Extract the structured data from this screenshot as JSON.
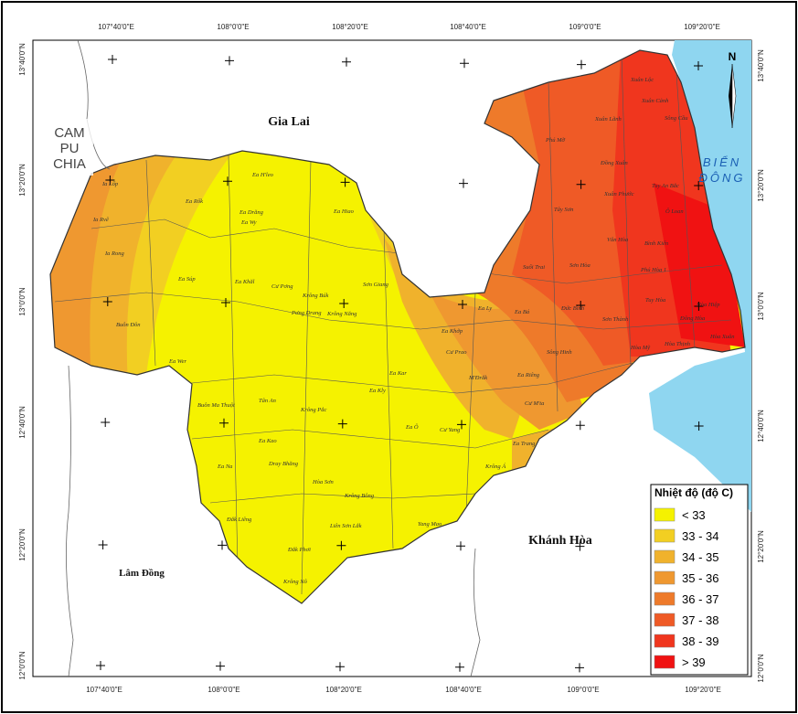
{
  "graticule": {
    "lon_labels": [
      "107°40'0\"E",
      "108°0'0\"E",
      "108°20'0\"E",
      "108°40'0\"E",
      "109°0'0\"E",
      "109°20'0\"E"
    ],
    "lat_labels": [
      "13°40'0\"N",
      "13°20'0\"N",
      "13°0'0\"N",
      "12°40'0\"N",
      "12°20'0\"N",
      "12°0'0\"N"
    ]
  },
  "regions": {
    "gia_lai": "Gia Lai",
    "campuchia": [
      "CAM",
      "PU",
      "CHIA"
    ],
    "lam_dong": "Lâm Đồng",
    "khanh_hoa": "Khánh Hòa",
    "bien_dong": [
      "BIỂN",
      "ĐÔNG"
    ],
    "north": "N"
  },
  "legend": {
    "title": "Nhiệt độ (độ C)",
    "items": [
      {
        "label": "< 33",
        "color": "#f5f200"
      },
      {
        "label": "33 - 34",
        "color": "#f2cf22"
      },
      {
        "label": "34 - 35",
        "color": "#f0b22c"
      },
      {
        "label": "35 - 36",
        "color": "#ef9830"
      },
      {
        "label": "36 - 37",
        "color": "#ee7a2a"
      },
      {
        "label": "37 - 38",
        "color": "#ef5a26"
      },
      {
        "label": "38 - 39",
        "color": "#f0361e"
      },
      {
        "label": "> 39",
        "color": "#f01212"
      }
    ]
  },
  "communes": [
    "Ia Lốp",
    "Ea Rốk",
    "Ia Rvê",
    "Ia Rong",
    "Ea Súp",
    "Buôn Đôn",
    "Ea H'leo",
    "Ea Wy",
    "Ea Khăl",
    "Ea Drăng",
    "Ea Hiao",
    "Krông Búk",
    "Cư Pơng",
    "Pơng Drang",
    "Krông Năng",
    "Ea Kar",
    "Ea Ô",
    "Cư Yang",
    "Ea Wer",
    "Buôn Ma Thuột",
    "Tân An",
    "Ea Kao",
    "Krông Pắc",
    "Ea Na",
    "Dray Bhăng",
    "Hòa Sơn",
    "Krông Bông",
    "Yang Mao",
    "Liên Sơn Lắk",
    "Đắk Liêng",
    "Đắk Phơi",
    "Krông Nô",
    "Ea Kly",
    "M'Đrắk",
    "Ea Riêng",
    "Cư M'ta",
    "Ea Trang",
    "Krông Á",
    "Sơn Giang",
    "Ea Khớp",
    "Cư Prao",
    "Ea Ly",
    "Ea Bá",
    "Sông Hinh",
    "Sơn Hòa",
    "Suối Trai",
    "Tây Sơn",
    "Phú Mỡ",
    "Xuân Lãnh",
    "Đồng Xuân",
    "Xuân Phước",
    "Vân Hòa",
    "Sơn Thành",
    "Đức Bình",
    "Hòa Mỹ",
    "Hòa Thịnh",
    "Tuy An Bắc",
    "Xuân Lộc",
    "Xuân Cảnh",
    "Sông Cầu",
    "Ô Loan",
    "Phú Hòa 1",
    "Tuy Hòa",
    "Đông Hòa",
    "Hòa Hiệp",
    "Hòa Xuân",
    "Bình Kiến"
  ]
}
